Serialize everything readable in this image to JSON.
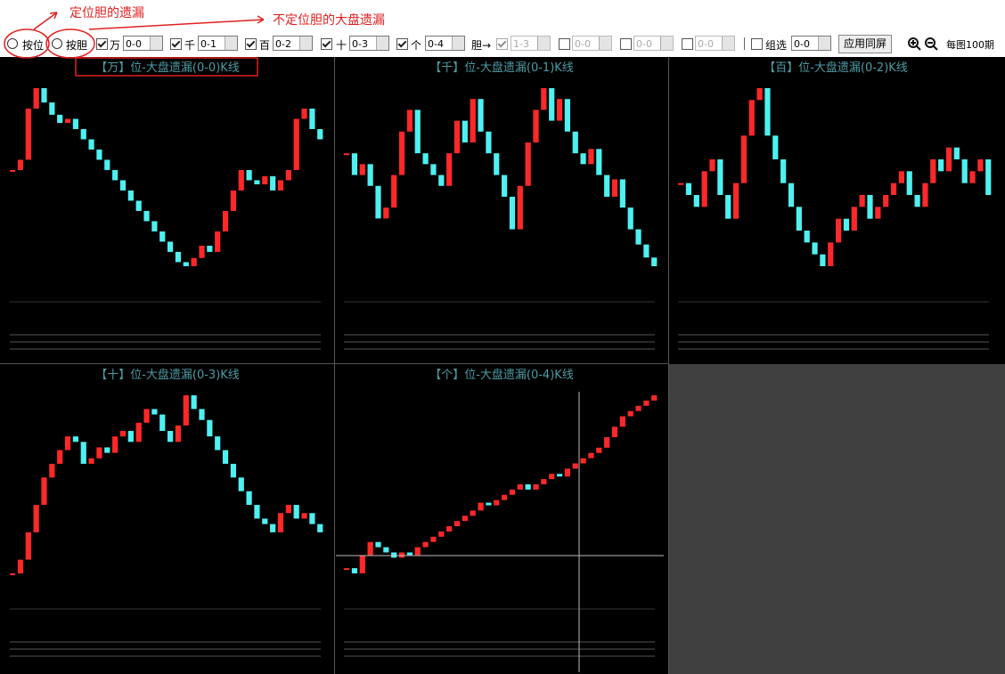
{
  "annotations": {
    "fixed": "定位胆的遗漏",
    "unfixed": "不定位胆的大盘遗漏"
  },
  "toolbar": {
    "radios": [
      "按位",
      "按胆"
    ],
    "positions": [
      {
        "label": "万",
        "range": "0-0"
      },
      {
        "label": "千",
        "range": "0-1"
      },
      {
        "label": "百",
        "range": "0-2"
      },
      {
        "label": "十",
        "range": "0-3"
      },
      {
        "label": "个",
        "range": "0-4"
      }
    ],
    "dan_label": "胆→",
    "dan_ranges": [
      "1-3",
      "0-0",
      "0-0",
      "0-0"
    ],
    "group_label": "组选",
    "group_range": "0-0",
    "apply": "应用同屏",
    "per_chart": "每图100期"
  },
  "panels": [
    {
      "title": "【万】位-大盘遗漏(0-0)K线",
      "closes": [
        55,
        60,
        85,
        95,
        88,
        82,
        78,
        80,
        75,
        70,
        65,
        60,
        55,
        50,
        45,
        40,
        35,
        30,
        25,
        20,
        15,
        10,
        8,
        12,
        18,
        15,
        25,
        35,
        45,
        55,
        50,
        48,
        52,
        45,
        50,
        55,
        80,
        85,
        75,
        70
      ]
    },
    {
      "title": "【千】位-大盘遗漏(0-1)K线",
      "closes": [
        60,
        50,
        55,
        45,
        30,
        35,
        50,
        70,
        80,
        60,
        55,
        50,
        45,
        60,
        75,
        65,
        85,
        70,
        60,
        50,
        40,
        25,
        45,
        65,
        80,
        90,
        75,
        85,
        70,
        60,
        55,
        62,
        50,
        40,
        48,
        35,
        25,
        18,
        12,
        8
      ]
    },
    {
      "title": "【百】位-大盘遗漏(0-2)K线",
      "closes": [
        50,
        45,
        40,
        55,
        60,
        45,
        35,
        50,
        70,
        85,
        90,
        70,
        60,
        50,
        40,
        30,
        25,
        20,
        15,
        25,
        35,
        30,
        40,
        45,
        35,
        40,
        45,
        50,
        55,
        45,
        40,
        50,
        60,
        55,
        65,
        60,
        50,
        55,
        60,
        45
      ]
    },
    {
      "title": "【十】位-大盘遗漏(0-3)K线",
      "closes": [
        20,
        25,
        35,
        45,
        55,
        60,
        65,
        70,
        68,
        60,
        62,
        66,
        64,
        70,
        72,
        68,
        75,
        80,
        78,
        72,
        68,
        74,
        85,
        80,
        76,
        70,
        65,
        60,
        55,
        50,
        45,
        40,
        38,
        35,
        42,
        45,
        40,
        42,
        38,
        35
      ]
    },
    {
      "title": "【个】位-大盘遗漏(0-4)K线",
      "closes": [
        30,
        28,
        35,
        40,
        38,
        36,
        34,
        36,
        35,
        38,
        40,
        42,
        44,
        46,
        48,
        50,
        52,
        55,
        54,
        56,
        58,
        60,
        62,
        60,
        62,
        64,
        66,
        65,
        68,
        70,
        72,
        74,
        76,
        80,
        84,
        88,
        90,
        92,
        94,
        96
      ]
    }
  ]
}
